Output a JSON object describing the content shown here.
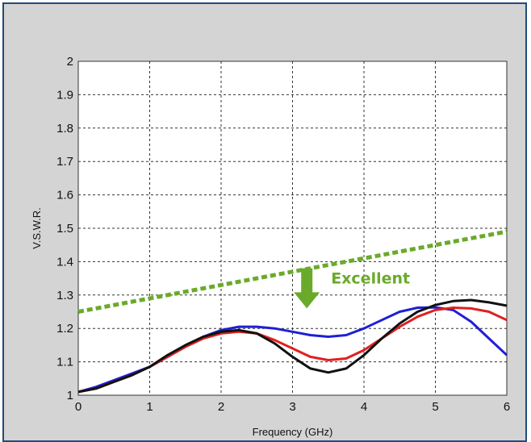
{
  "chart_data": {
    "type": "line",
    "xlabel": "Frequency (GHz)",
    "ylabel": "V.S.W.R.",
    "xlim": [
      0,
      6
    ],
    "ylim": [
      1,
      2
    ],
    "x_ticks": [
      "0",
      "1",
      "2",
      "3",
      "4",
      "5",
      "6"
    ],
    "y_ticks": [
      "1",
      "1.1",
      "1.2",
      "1.3",
      "1.4",
      "1.5",
      "1.6",
      "1.7",
      "1.8",
      "1.9",
      "2"
    ],
    "grid": true,
    "series": [
      {
        "color": "#1f1fd6",
        "x": [
          0,
          0.25,
          0.5,
          0.75,
          1.0,
          1.25,
          1.5,
          1.75,
          2.0,
          2.25,
          2.5,
          2.75,
          3.0,
          3.25,
          3.5,
          3.75,
          4.0,
          4.25,
          4.5,
          4.75,
          5.0,
          5.25,
          5.5,
          5.75,
          6.0
        ],
        "y": [
          1.01,
          1.025,
          1.045,
          1.065,
          1.085,
          1.115,
          1.145,
          1.175,
          1.195,
          1.205,
          1.205,
          1.2,
          1.19,
          1.18,
          1.175,
          1.18,
          1.2,
          1.225,
          1.25,
          1.262,
          1.263,
          1.255,
          1.22,
          1.17,
          1.12
        ]
      },
      {
        "color": "#e02020",
        "x": [
          0,
          0.25,
          0.5,
          0.75,
          1.0,
          1.25,
          1.5,
          1.75,
          2.0,
          2.25,
          2.5,
          2.75,
          3.0,
          3.25,
          3.5,
          3.75,
          4.0,
          4.25,
          4.5,
          4.75,
          5.0,
          5.25,
          5.5,
          5.75,
          6.0
        ],
        "y": [
          1.01,
          1.02,
          1.04,
          1.06,
          1.085,
          1.115,
          1.145,
          1.17,
          1.185,
          1.19,
          1.185,
          1.165,
          1.14,
          1.115,
          1.105,
          1.11,
          1.135,
          1.17,
          1.205,
          1.235,
          1.255,
          1.262,
          1.26,
          1.25,
          1.225
        ]
      },
      {
        "color": "#111111",
        "x": [
          0,
          0.25,
          0.5,
          0.75,
          1.0,
          1.25,
          1.5,
          1.75,
          2.0,
          2.25,
          2.5,
          2.75,
          3.0,
          3.25,
          3.5,
          3.75,
          4.0,
          4.25,
          4.5,
          4.75,
          5.0,
          5.25,
          5.5,
          5.75,
          6.0
        ],
        "y": [
          1.01,
          1.02,
          1.04,
          1.06,
          1.085,
          1.12,
          1.15,
          1.175,
          1.19,
          1.195,
          1.185,
          1.155,
          1.115,
          1.08,
          1.068,
          1.08,
          1.12,
          1.17,
          1.215,
          1.25,
          1.27,
          1.282,
          1.285,
          1.278,
          1.268
        ]
      }
    ],
    "threshold_line": {
      "color": "#6aaa2a",
      "style": "dashed",
      "x": [
        0,
        6
      ],
      "y": [
        1.25,
        1.49
      ]
    },
    "annotation": {
      "text": "Excellent",
      "color": "#6aaa2a",
      "arrow_x": 3.2,
      "arrow_y_from": 1.38,
      "arrow_y_to": 1.26
    }
  }
}
